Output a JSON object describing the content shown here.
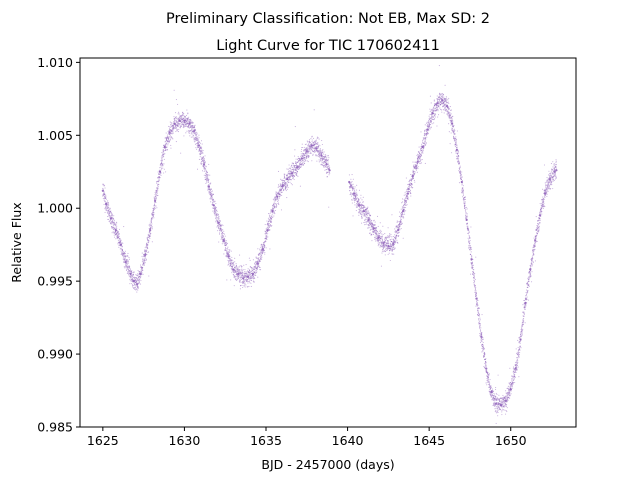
{
  "figure": {
    "suptitle": "Preliminary Classification: Not EB, Max SD: 2"
  },
  "chart_data": {
    "type": "scatter",
    "title": "Light Curve for TIC 170602411",
    "xlabel": "BJD - 2457000 (days)",
    "ylabel": "Relative Flux",
    "xlim": [
      1623.6,
      1654.0
    ],
    "ylim": [
      0.985,
      1.0103
    ],
    "xticks": [
      1625,
      1630,
      1635,
      1640,
      1645,
      1650
    ],
    "xtick_labels": [
      "1625",
      "1630",
      "1635",
      "1640",
      "1645",
      "1650"
    ],
    "yticks": [
      0.985,
      0.99,
      0.995,
      1.0,
      1.005,
      1.01
    ],
    "ytick_labels": [
      "0.985",
      "0.990",
      "0.995",
      "1.000",
      "1.005",
      "1.010"
    ],
    "grid": false,
    "marker_color": "#9467bd",
    "segments": [
      {
        "x": [
          1625.0,
          1625.2,
          1625.5,
          1625.8,
          1626.1,
          1626.4,
          1626.7,
          1626.9,
          1627.1,
          1627.3,
          1627.6,
          1627.9,
          1628.2,
          1628.5,
          1628.8,
          1629.1,
          1629.4,
          1629.7,
          1630.0,
          1630.3,
          1630.6,
          1630.9,
          1631.2,
          1631.5,
          1631.8,
          1632.1,
          1632.4,
          1632.7,
          1633.0,
          1633.3,
          1633.6,
          1633.9,
          1634.2,
          1634.5,
          1634.8,
          1635.1,
          1635.4,
          1635.7,
          1636.0,
          1636.3,
          1636.6,
          1636.9,
          1637.2,
          1637.5,
          1637.8,
          1638.1,
          1638.4,
          1638.7,
          1638.9
        ],
        "y": [
          1.0012,
          1.0003,
          0.9993,
          0.9985,
          0.9975,
          0.9963,
          0.9955,
          0.995,
          0.9948,
          0.9955,
          0.9968,
          0.9985,
          1.0005,
          1.0025,
          1.0042,
          1.0052,
          1.0058,
          1.006,
          1.006,
          1.0058,
          1.0053,
          1.0043,
          1.003,
          1.0015,
          1.0002,
          0.999,
          0.9978,
          0.9967,
          0.9958,
          0.9955,
          0.9952,
          0.9953,
          0.9955,
          0.9962,
          0.9972,
          0.9985,
          0.9998,
          1.0008,
          1.0015,
          1.002,
          1.0024,
          1.0028,
          1.0034,
          1.0039,
          1.0043,
          1.0041,
          1.0036,
          1.003,
          1.0026
        ]
      },
      {
        "x": [
          1640.1,
          1640.4,
          1640.7,
          1641.0,
          1641.3,
          1641.6,
          1641.9,
          1642.2,
          1642.5,
          1642.8,
          1643.1,
          1643.4,
          1643.7,
          1644.0,
          1644.3,
          1644.6,
          1644.9,
          1645.2,
          1645.5,
          1645.8,
          1646.1,
          1646.4,
          1646.7,
          1647.0,
          1647.3,
          1647.6,
          1647.9,
          1648.2,
          1648.5,
          1648.8,
          1649.1,
          1649.4,
          1649.7,
          1650.0,
          1650.3,
          1650.6,
          1650.9,
          1651.2,
          1651.5,
          1651.8,
          1652.1,
          1652.4,
          1652.7,
          1652.8
        ],
        "y": [
          1.0018,
          1.001,
          1.0002,
          0.9998,
          0.9992,
          0.9986,
          0.998,
          0.9976,
          0.9974,
          0.9976,
          0.9985,
          0.9998,
          1.001,
          1.0022,
          1.0032,
          1.0042,
          1.0054,
          1.0065,
          1.0072,
          1.0074,
          1.007,
          1.0058,
          1.004,
          1.0018,
          0.9992,
          0.9965,
          0.9938,
          0.9912,
          0.989,
          0.9874,
          0.9866,
          0.9865,
          0.9868,
          0.9876,
          0.989,
          0.991,
          0.9935,
          0.9958,
          0.9978,
          0.9995,
          1.001,
          1.002,
          1.0025,
          1.0026
        ]
      }
    ]
  }
}
